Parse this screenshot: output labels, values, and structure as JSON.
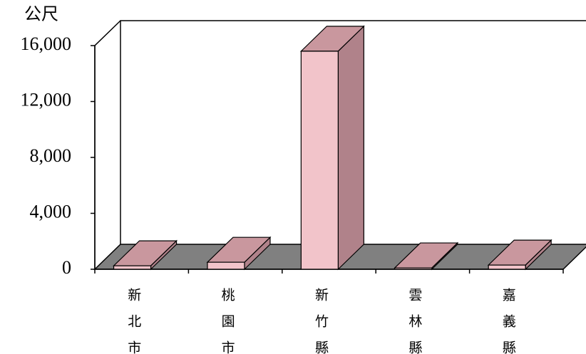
{
  "chart_data": {
    "type": "bar3d",
    "y_label": "公尺",
    "categories": [
      "新北市",
      "桃園市",
      "新竹縣",
      "雲林縣",
      "嘉義縣"
    ],
    "values": [
      250,
      500,
      15600,
      100,
      300
    ],
    "color": "#f2c4ca",
    "ylim": [
      0,
      16000
    ],
    "yticks": [
      0,
      {
        "value": 4000,
        "label": "4,000"
      },
      {
        "value": 8000,
        "label": "8,000"
      },
      {
        "value": 12000,
        "label": "12,000"
      },
      {
        "value": 16000,
        "label": "16,000"
      }
    ]
  }
}
